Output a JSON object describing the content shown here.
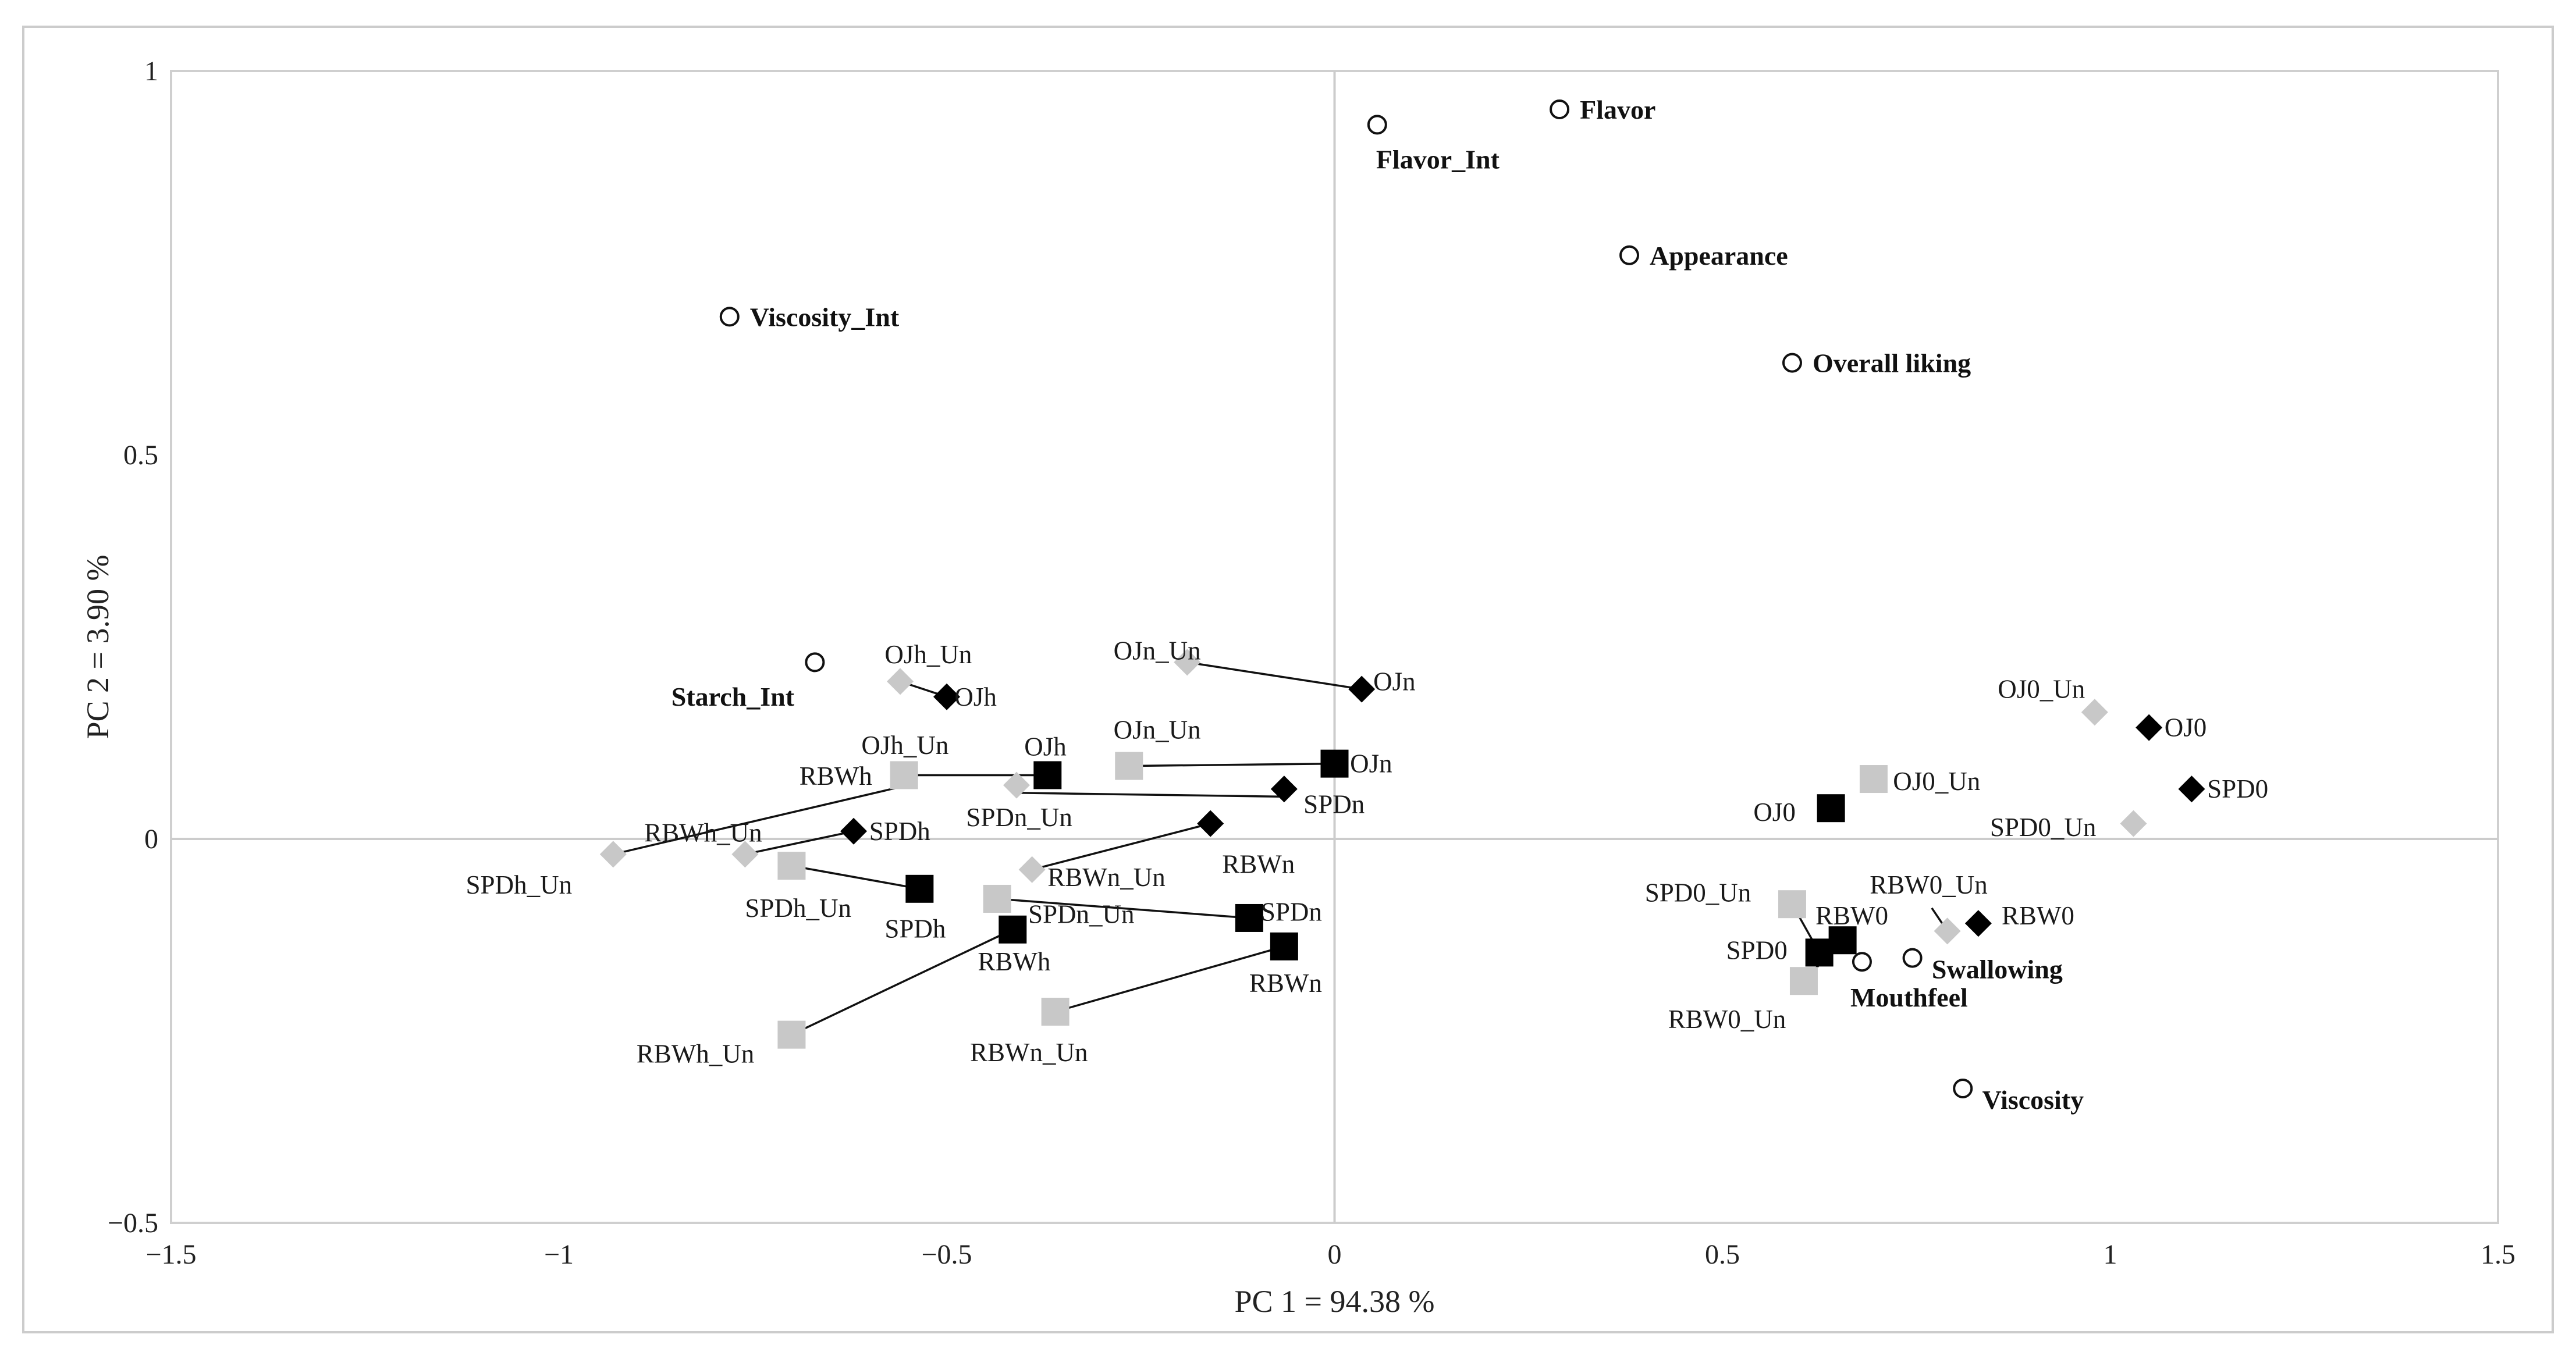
{
  "chart_data": {
    "type": "scatter",
    "title": "",
    "xlabel": "PC 1 = 94.38 %",
    "ylabel": "PC 2 = 3.90 %",
    "xlim": [
      -1.5,
      1.5
    ],
    "ylim": [
      -0.5,
      1.0
    ],
    "x_ticks": [
      -1.5,
      -1.0,
      -0.5,
      0,
      0.5,
      1.0,
      1.5
    ],
    "x_tick_labels": [
      "−1.5",
      "−1",
      "−0.5",
      "0",
      "0.5",
      "1",
      "1.5"
    ],
    "y_ticks": [
      1.0,
      0.5,
      0,
      -0.5
    ],
    "y_tick_labels": [
      "1",
      "0.5",
      "0",
      "−0.5"
    ],
    "grid": false,
    "legend": "none",
    "series": [
      {
        "name": "attributes",
        "marker": "open-circle",
        "points": [
          {
            "label": "Flavor",
            "x": 0.29,
            "y": 0.95
          },
          {
            "label": "Flavor_Int",
            "x": 0.055,
            "y": 0.93
          },
          {
            "label": "Appearance",
            "x": 0.38,
            "y": 0.76
          },
          {
            "label": "Overall liking",
            "x": 0.59,
            "y": 0.62
          },
          {
            "label": "Viscosity_Int",
            "x": -0.78,
            "y": 0.68
          },
          {
            "label": "Starch_Int",
            "x": -0.67,
            "y": 0.23
          },
          {
            "label": "Swallowing",
            "x": 0.745,
            "y": -0.155
          },
          {
            "label": "Mouthfeel",
            "x": 0.68,
            "y": -0.16
          },
          {
            "label": "Viscosity",
            "x": 0.81,
            "y": -0.325
          }
        ]
      },
      {
        "name": "samples-diamond",
        "marker": "black-diamond",
        "points": [
          {
            "label": "OJh",
            "x": -0.5,
            "y": 0.185
          },
          {
            "label": "OJn",
            "x": 0.035,
            "y": 0.195
          },
          {
            "label": "SPDh",
            "x": -0.62,
            "y": 0.01
          },
          {
            "label": "SPDn",
            "x": -0.065,
            "y": 0.065
          },
          {
            "label": "RBWn",
            "x": -0.16,
            "y": 0.02
          },
          {
            "label": "OJ0",
            "x": 1.05,
            "y": 0.145
          },
          {
            "label": "SPD0",
            "x": 1.105,
            "y": 0.065
          },
          {
            "label": "RBW0",
            "x": 0.83,
            "y": -0.11
          }
        ]
      },
      {
        "name": "samples-diamond-un",
        "marker": "gray-diamond",
        "points": [
          {
            "label": "OJh_Un",
            "x": -0.56,
            "y": 0.205
          },
          {
            "label": "OJn_Un",
            "x": -0.19,
            "y": 0.23
          },
          {
            "label": "SPDh_Un",
            "x": -0.93,
            "y": -0.02
          },
          {
            "label": "RBWh_Un",
            "x": -0.76,
            "y": -0.02
          },
          {
            "label": "SPDn_Un",
            "x": -0.41,
            "y": 0.07
          },
          {
            "label": "RBWn_Un",
            "x": -0.39,
            "y": -0.04
          },
          {
            "label": "OJ0_Un",
            "x": 0.98,
            "y": 0.165
          },
          {
            "label": "SPD0_Un",
            "x": 1.03,
            "y": 0.02
          },
          {
            "label": "RBW0_Un",
            "x": 0.79,
            "y": -0.12
          }
        ]
      },
      {
        "name": "samples-square",
        "marker": "black-square",
        "points": [
          {
            "label": "OJh",
            "x": -0.37,
            "y": 0.083
          },
          {
            "label": "OJn",
            "x": 0.0,
            "y": 0.098
          },
          {
            "label": "SPDh",
            "x": -0.535,
            "y": -0.065
          },
          {
            "label": "RBWh",
            "x": -0.415,
            "y": -0.118
          },
          {
            "label": "SPDn",
            "x": -0.11,
            "y": -0.103
          },
          {
            "label": "RBWn",
            "x": -0.065,
            "y": -0.14
          },
          {
            "label": "OJ0",
            "x": 0.64,
            "y": 0.04
          },
          {
            "label": "RBW0",
            "x": 0.655,
            "y": -0.132
          },
          {
            "label": "SPD0",
            "x": 0.625,
            "y": -0.148
          }
        ]
      },
      {
        "name": "samples-square-un",
        "marker": "gray-square",
        "points": [
          {
            "label": "OJh_Un",
            "x": -0.555,
            "y": 0.083
          },
          {
            "label": "OJn_Un",
            "x": -0.265,
            "y": 0.095
          },
          {
            "label": "SPDh_Un",
            "x": -0.7,
            "y": -0.035
          },
          {
            "label": "SPDn_Un",
            "x": -0.435,
            "y": -0.078
          },
          {
            "label": "RBWh_Un",
            "x": -0.7,
            "y": -0.255
          },
          {
            "label": "RBWn_Un",
            "x": -0.36,
            "y": -0.225
          },
          {
            "label": "OJ0_Un",
            "x": 0.695,
            "y": 0.078
          },
          {
            "label": "SPD0_Un",
            "x": 0.59,
            "y": -0.085
          },
          {
            "label": "RBW0_Un",
            "x": 0.605,
            "y": -0.185
          }
        ]
      }
    ],
    "connectors": [
      {
        "from": [
          -0.56,
          0.205
        ],
        "to": [
          -0.5,
          0.185
        ]
      },
      {
        "from": [
          -0.19,
          0.23
        ],
        "to": [
          0.035,
          0.195
        ]
      },
      {
        "from": [
          -0.555,
          0.083
        ],
        "to": [
          -0.37,
          0.083
        ]
      },
      {
        "from": [
          -0.265,
          0.095
        ],
        "to": [
          0.0,
          0.098
        ]
      },
      {
        "from": [
          -0.41,
          0.06
        ],
        "to": [
          -0.065,
          0.055
        ]
      },
      {
        "from": [
          -0.39,
          -0.04
        ],
        "to": [
          -0.16,
          0.02
        ]
      },
      {
        "from": [
          -0.93,
          -0.02
        ],
        "to": [
          -0.55,
          0.07
        ]
      },
      {
        "from": [
          -0.76,
          -0.02
        ],
        "to": [
          -0.62,
          0.01
        ]
      },
      {
        "from": [
          -0.7,
          -0.035
        ],
        "to": [
          -0.535,
          -0.065
        ]
      },
      {
        "from": [
          -0.435,
          -0.078
        ],
        "to": [
          -0.11,
          -0.103
        ]
      },
      {
        "from": [
          -0.7,
          -0.255
        ],
        "to": [
          -0.415,
          -0.118
        ]
      },
      {
        "from": [
          -0.36,
          -0.225
        ],
        "to": [
          -0.065,
          -0.14
        ]
      },
      {
        "from": [
          0.59,
          -0.085
        ],
        "to": [
          0.625,
          -0.148
        ]
      },
      {
        "from": [
          0.605,
          -0.185
        ],
        "to": [
          0.655,
          -0.132
        ]
      },
      {
        "from": [
          0.79,
          -0.12
        ],
        "to": [
          0.77,
          -0.09
        ]
      }
    ],
    "annotations": [
      {
        "text": "OJh_Un",
        "x": -0.58,
        "y": 0.24
      },
      {
        "text": "OJh",
        "x": -0.49,
        "y": 0.185
      },
      {
        "text": "Starch_Int",
        "x": -0.855,
        "y": 0.185
      },
      {
        "text": "OJn_Un",
        "x": -0.285,
        "y": 0.245
      },
      {
        "text": "OJn",
        "x": 0.05,
        "y": 0.205
      },
      {
        "text": "OJh_Un",
        "x": -0.61,
        "y": 0.122
      },
      {
        "text": "OJh",
        "x": -0.4,
        "y": 0.12
      },
      {
        "text": "OJn_Un",
        "x": -0.285,
        "y": 0.142
      },
      {
        "text": "OJn",
        "x": 0.02,
        "y": 0.098
      },
      {
        "text": "RBWh",
        "x": -0.69,
        "y": 0.082
      },
      {
        "text": "SPDn_Un",
        "x": -0.475,
        "y": 0.028
      },
      {
        "text": "SPDn",
        "x": -0.04,
        "y": 0.045
      },
      {
        "text": "RBWh_Un",
        "x": -0.89,
        "y": 0.008
      },
      {
        "text": "SPDh",
        "x": -0.6,
        "y": 0.01
      },
      {
        "text": "RBWn",
        "x": -0.145,
        "y": -0.033
      },
      {
        "text": "SPDh_Un",
        "x": -1.12,
        "y": -0.06
      },
      {
        "text": "RBWn_Un",
        "x": -0.37,
        "y": -0.05
      },
      {
        "text": "SPDh_Un",
        "x": -0.76,
        "y": -0.09
      },
      {
        "text": "SPDh",
        "x": -0.58,
        "y": -0.117
      },
      {
        "text": "SPDn_Un",
        "x": -0.395,
        "y": -0.098
      },
      {
        "text": "SPDn",
        "x": -0.095,
        "y": -0.095
      },
      {
        "text": "RBWh",
        "x": -0.46,
        "y": -0.16
      },
      {
        "text": "RBWn",
        "x": -0.11,
        "y": -0.188
      },
      {
        "text": "RBWh_Un",
        "x": -0.9,
        "y": -0.28
      },
      {
        "text": "RBWn_Un",
        "x": -0.47,
        "y": -0.278
      },
      {
        "text": "OJ0_Un",
        "x": 0.855,
        "y": 0.195
      },
      {
        "text": "OJ0",
        "x": 1.07,
        "y": 0.145
      },
      {
        "text": "OJ0_Un",
        "x": 0.72,
        "y": 0.075
      },
      {
        "text": "SPD0",
        "x": 1.125,
        "y": 0.065
      },
      {
        "text": "OJ0",
        "x": 0.54,
        "y": 0.035
      },
      {
        "text": "SPD0_Un",
        "x": 0.845,
        "y": 0.015
      },
      {
        "text": "SPD0_Un",
        "x": 0.4,
        "y": -0.07
      },
      {
        "text": "RBW0_Un",
        "x": 0.69,
        "y": -0.06
      },
      {
        "text": "RBW0",
        "x": 0.62,
        "y": -0.1
      },
      {
        "text": "RBW0",
        "x": 0.86,
        "y": -0.1
      },
      {
        "text": "SPD0",
        "x": 0.505,
        "y": -0.145
      },
      {
        "text": "Swallowing",
        "x": 0.77,
        "y": -0.17
      },
      {
        "text": "Mouthfeel",
        "x": 0.665,
        "y": -0.207
      },
      {
        "text": "RBW0_Un",
        "x": 0.43,
        "y": -0.235
      },
      {
        "text": "Viscosity",
        "x": 0.835,
        "y": -0.34
      }
    ],
    "attribute_label_offsets": [
      {
        "label": "Flavor",
        "align": "right"
      },
      {
        "label": "Flavor_Int",
        "align": "below"
      },
      {
        "label": "Appearance",
        "align": "right"
      },
      {
        "label": "Overall liking",
        "align": "right"
      },
      {
        "label": "Viscosity_Int",
        "align": "right"
      }
    ]
  }
}
